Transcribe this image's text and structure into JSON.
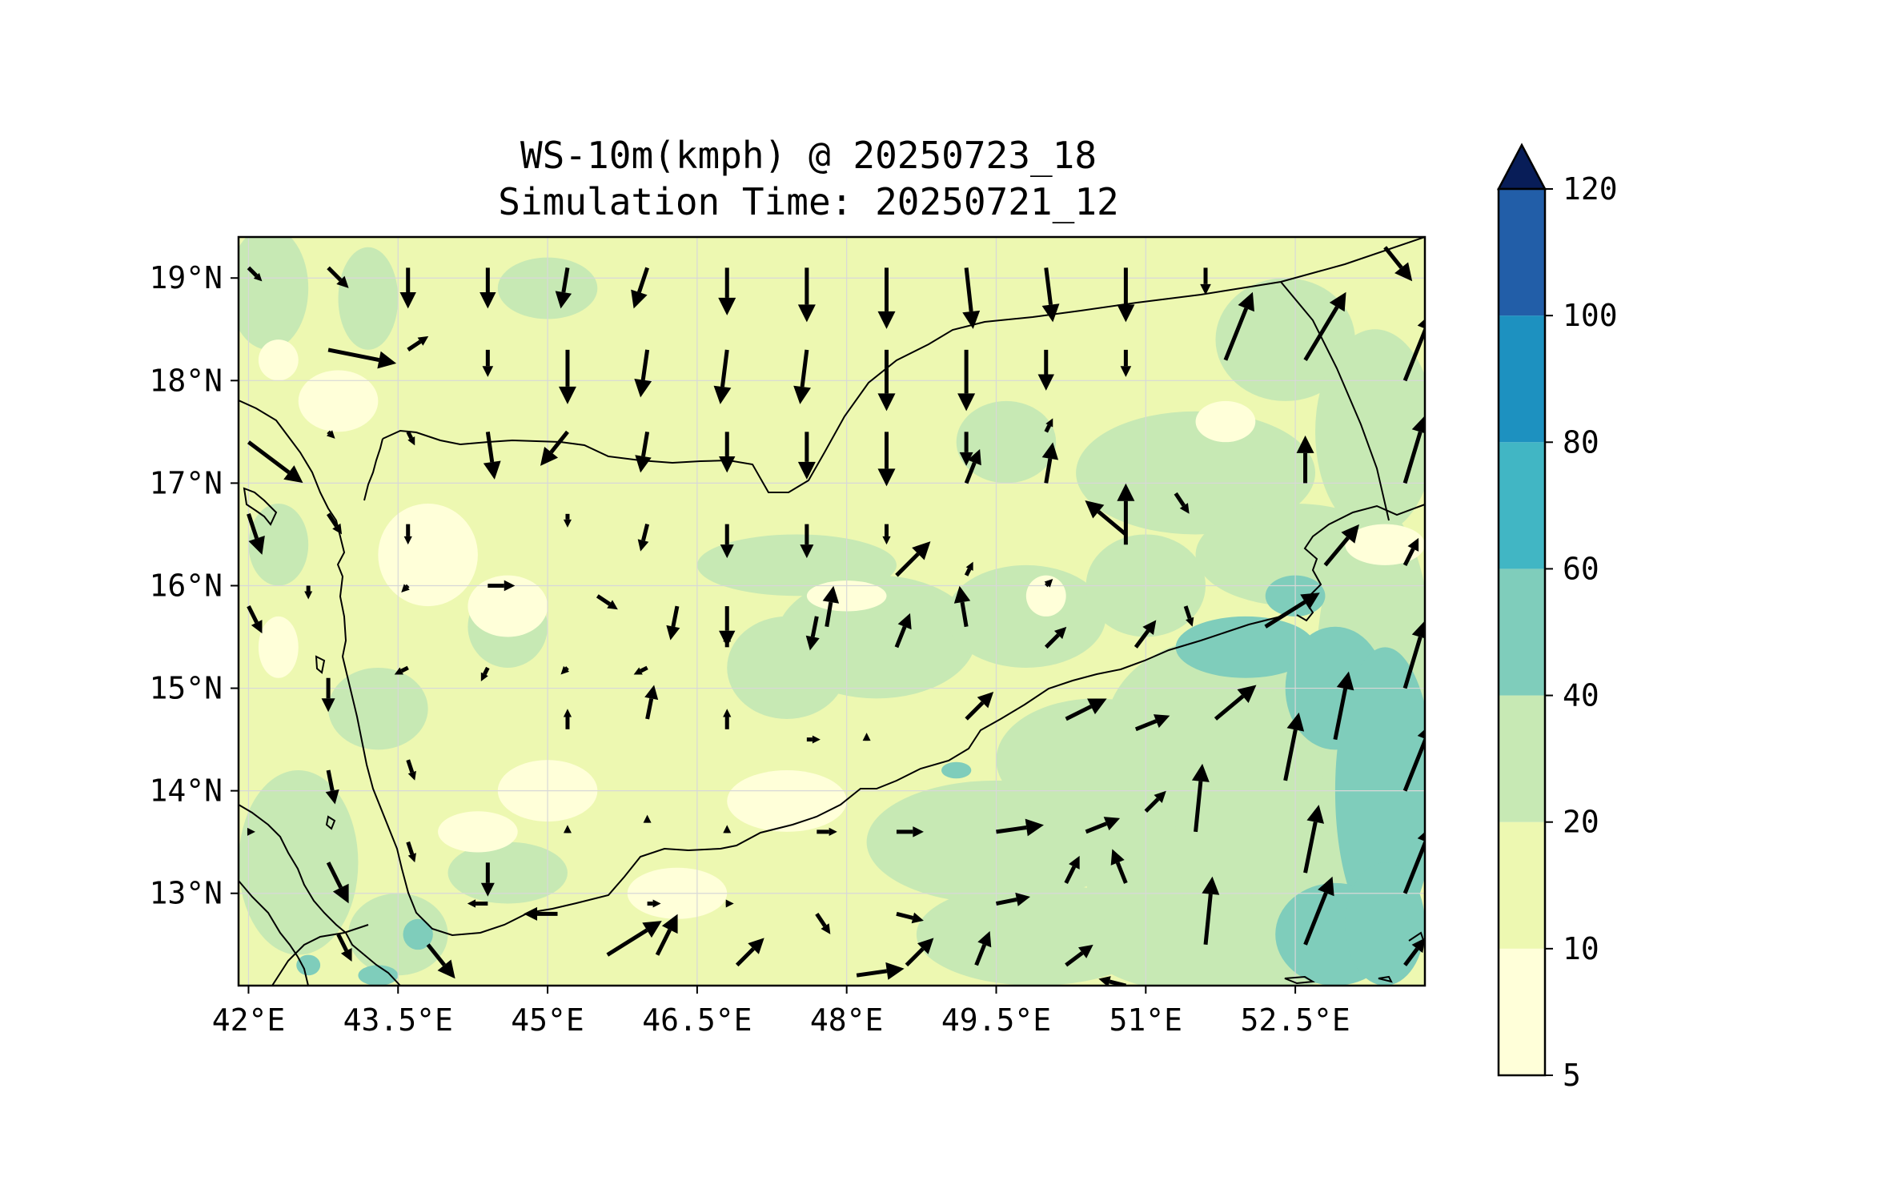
{
  "chart_data": {
    "type": "heatmap",
    "title_line1": "WS-10m(kmph) @ 20250723_18",
    "title_line2": "Simulation Time: 20250721_12",
    "x_ticks": [
      "42°E",
      "43.5°E",
      "45°E",
      "46.5°E",
      "48°E",
      "49.5°E",
      "51°E",
      "52.5°E"
    ],
    "x_tick_values": [
      42,
      43.5,
      45,
      46.5,
      48,
      49.5,
      51,
      52.5
    ],
    "y_ticks": [
      "13°N",
      "14°N",
      "15°N",
      "16°N",
      "17°N",
      "18°N",
      "19°N"
    ],
    "y_tick_values": [
      13,
      14,
      15,
      16,
      17,
      18,
      19
    ],
    "xlim": [
      41.9,
      53.8
    ],
    "ylim": [
      12.1,
      19.4
    ],
    "grid": true,
    "colorbar": {
      "levels": [
        5,
        10,
        20,
        40,
        60,
        80,
        100,
        120
      ],
      "level_labels": [
        "5",
        "10",
        "20",
        "40",
        "60",
        "80",
        "100",
        "120"
      ],
      "colors": [
        "#ffffd9",
        "#edf8b1",
        "#c7e9b4",
        "#7fcdbb",
        "#41b6c4",
        "#1d91c0",
        "#225ea8",
        "#0c2c84"
      ],
      "extend": "max",
      "extend_color": "#081d58"
    },
    "wind_vectors": [
      {
        "lon": 42.0,
        "lat": 19.1,
        "u": 0.2,
        "v": -0.2
      },
      {
        "lon": 42.8,
        "lat": 19.1,
        "u": 0.3,
        "v": -0.3
      },
      {
        "lon": 43.6,
        "lat": 19.1,
        "u": 0.0,
        "v": -0.6
      },
      {
        "lon": 44.4,
        "lat": 19.1,
        "u": 0.0,
        "v": -0.6
      },
      {
        "lon": 45.2,
        "lat": 19.1,
        "u": -0.1,
        "v": -0.6
      },
      {
        "lon": 46.0,
        "lat": 19.1,
        "u": -0.2,
        "v": -0.6
      },
      {
        "lon": 46.8,
        "lat": 19.1,
        "u": 0.0,
        "v": -0.7
      },
      {
        "lon": 47.6,
        "lat": 19.1,
        "u": 0.0,
        "v": -0.8
      },
      {
        "lon": 48.4,
        "lat": 19.1,
        "u": 0.0,
        "v": -0.9
      },
      {
        "lon": 49.2,
        "lat": 19.1,
        "u": 0.1,
        "v": -0.9
      },
      {
        "lon": 50.0,
        "lat": 19.1,
        "u": 0.1,
        "v": -0.8
      },
      {
        "lon": 50.8,
        "lat": 19.1,
        "u": 0.0,
        "v": -0.8
      },
      {
        "lon": 51.6,
        "lat": 19.1,
        "u": 0.0,
        "v": -0.4
      },
      {
        "lon": 53.4,
        "lat": 19.3,
        "u": 0.4,
        "v": -0.5
      },
      {
        "lon": 42.8,
        "lat": 18.3,
        "u": 1.0,
        "v": -0.2
      },
      {
        "lon": 43.6,
        "lat": 18.3,
        "u": 0.3,
        "v": 0.2
      },
      {
        "lon": 44.4,
        "lat": 18.3,
        "u": 0.0,
        "v": -0.4
      },
      {
        "lon": 45.2,
        "lat": 18.3,
        "u": 0.0,
        "v": -0.8
      },
      {
        "lon": 46.0,
        "lat": 18.3,
        "u": -0.1,
        "v": -0.7
      },
      {
        "lon": 46.8,
        "lat": 18.3,
        "u": -0.1,
        "v": -0.8
      },
      {
        "lon": 47.6,
        "lat": 18.3,
        "u": -0.1,
        "v": -0.8
      },
      {
        "lon": 48.4,
        "lat": 18.3,
        "u": 0.0,
        "v": -0.9
      },
      {
        "lon": 49.2,
        "lat": 18.3,
        "u": 0.0,
        "v": -0.9
      },
      {
        "lon": 50.0,
        "lat": 18.3,
        "u": 0.0,
        "v": -0.6
      },
      {
        "lon": 50.8,
        "lat": 18.3,
        "u": 0.0,
        "v": -0.4
      },
      {
        "lon": 51.8,
        "lat": 18.2,
        "u": 0.4,
        "v": 1.0
      },
      {
        "lon": 52.6,
        "lat": 18.2,
        "u": 0.6,
        "v": 1.0
      },
      {
        "lon": 53.6,
        "lat": 18.0,
        "u": 0.4,
        "v": 1.0
      },
      {
        "lon": 42.0,
        "lat": 17.4,
        "u": 0.8,
        "v": -0.6
      },
      {
        "lon": 42.8,
        "lat": 17.5,
        "u": 0.1,
        "v": -0.1
      },
      {
        "lon": 43.6,
        "lat": 17.5,
        "u": 0.1,
        "v": -0.2
      },
      {
        "lon": 44.4,
        "lat": 17.5,
        "u": 0.1,
        "v": -0.7
      },
      {
        "lon": 45.2,
        "lat": 17.5,
        "u": -0.4,
        "v": -0.5
      },
      {
        "lon": 46.0,
        "lat": 17.5,
        "u": -0.1,
        "v": -0.6
      },
      {
        "lon": 46.8,
        "lat": 17.5,
        "u": 0.0,
        "v": -0.6
      },
      {
        "lon": 47.6,
        "lat": 17.5,
        "u": 0.0,
        "v": -0.7
      },
      {
        "lon": 48.4,
        "lat": 17.5,
        "u": 0.0,
        "v": -0.8
      },
      {
        "lon": 49.2,
        "lat": 17.5,
        "u": 0.0,
        "v": -0.5
      },
      {
        "lon": 50.0,
        "lat": 17.5,
        "u": 0.1,
        "v": 0.2
      },
      {
        "lon": 52.6,
        "lat": 17.0,
        "u": 0.0,
        "v": 0.7
      },
      {
        "lon": 53.6,
        "lat": 17.0,
        "u": 0.3,
        "v": 1.0
      },
      {
        "lon": 42.0,
        "lat": 16.7,
        "u": 0.2,
        "v": -0.6
      },
      {
        "lon": 42.8,
        "lat": 16.7,
        "u": 0.2,
        "v": -0.3
      },
      {
        "lon": 43.6,
        "lat": 16.6,
        "u": 0.0,
        "v": -0.3
      },
      {
        "lon": 45.2,
        "lat": 16.7,
        "u": 0.0,
        "v": -0.2
      },
      {
        "lon": 46.0,
        "lat": 16.6,
        "u": -0.1,
        "v": -0.4
      },
      {
        "lon": 46.8,
        "lat": 16.6,
        "u": 0.0,
        "v": -0.5
      },
      {
        "lon": 47.6,
        "lat": 16.6,
        "u": 0.0,
        "v": -0.5
      },
      {
        "lon": 48.4,
        "lat": 16.6,
        "u": 0.0,
        "v": -0.3
      },
      {
        "lon": 49.2,
        "lat": 17.0,
        "u": 0.2,
        "v": 0.5
      },
      {
        "lon": 50.0,
        "lat": 17.0,
        "u": 0.1,
        "v": 0.6
      },
      {
        "lon": 50.8,
        "lat": 16.5,
        "u": -0.6,
        "v": 0.5
      },
      {
        "lon": 51.3,
        "lat": 16.9,
        "u": 0.2,
        "v": -0.3
      },
      {
        "lon": 50.8,
        "lat": 16.4,
        "u": 0.0,
        "v": 0.9
      },
      {
        "lon": 42.0,
        "lat": 15.8,
        "u": 0.2,
        "v": -0.4
      },
      {
        "lon": 42.6,
        "lat": 16.0,
        "u": 0.0,
        "v": -0.2
      },
      {
        "lon": 43.6,
        "lat": 16.0,
        "u": -0.1,
        "v": -0.1
      },
      {
        "lon": 44.4,
        "lat": 16.0,
        "u": 0.4,
        "v": 0.0
      },
      {
        "lon": 45.5,
        "lat": 15.9,
        "u": 0.3,
        "v": -0.2
      },
      {
        "lon": 46.3,
        "lat": 15.8,
        "u": -0.1,
        "v": -0.5
      },
      {
        "lon": 46.8,
        "lat": 15.8,
        "u": 0.0,
        "v": -0.6
      },
      {
        "lon": 47.7,
        "lat": 15.7,
        "u": -0.1,
        "v": -0.5
      },
      {
        "lon": 47.8,
        "lat": 15.6,
        "u": 0.1,
        "v": 0.6
      },
      {
        "lon": 48.5,
        "lat": 16.1,
        "u": 0.5,
        "v": 0.5
      },
      {
        "lon": 49.2,
        "lat": 15.6,
        "u": -0.1,
        "v": 0.6
      },
      {
        "lon": 49.2,
        "lat": 16.1,
        "u": 0.1,
        "v": 0.2
      },
      {
        "lon": 50.0,
        "lat": 16.0,
        "u": 0.1,
        "v": 0.1
      },
      {
        "lon": 51.4,
        "lat": 15.8,
        "u": 0.1,
        "v": -0.3
      },
      {
        "lon": 52.2,
        "lat": 15.6,
        "u": 0.8,
        "v": 0.5
      },
      {
        "lon": 52.8,
        "lat": 16.2,
        "u": 0.5,
        "v": 0.6
      },
      {
        "lon": 53.6,
        "lat": 16.2,
        "u": 0.2,
        "v": 0.4
      },
      {
        "lon": 42.8,
        "lat": 15.1,
        "u": 0.0,
        "v": -0.5
      },
      {
        "lon": 43.6,
        "lat": 15.2,
        "u": -0.2,
        "v": -0.1
      },
      {
        "lon": 44.4,
        "lat": 15.2,
        "u": -0.1,
        "v": -0.2
      },
      {
        "lon": 45.2,
        "lat": 15.2,
        "u": -0.1,
        "v": -0.1
      },
      {
        "lon": 46.0,
        "lat": 15.2,
        "u": -0.2,
        "v": -0.1
      },
      {
        "lon": 46.8,
        "lat": 15.4,
        "u": 0.0,
        "v": 0.2
      },
      {
        "lon": 48.5,
        "lat": 15.4,
        "u": 0.2,
        "v": 0.5
      },
      {
        "lon": 50.0,
        "lat": 15.4,
        "u": 0.3,
        "v": 0.3
      },
      {
        "lon": 50.9,
        "lat": 15.4,
        "u": 0.3,
        "v": 0.4
      },
      {
        "lon": 52.9,
        "lat": 14.5,
        "u": 0.2,
        "v": 1.0
      },
      {
        "lon": 53.6,
        "lat": 15.0,
        "u": 0.3,
        "v": 1.0
      },
      {
        "lon": 42.8,
        "lat": 14.2,
        "u": 0.1,
        "v": -0.5
      },
      {
        "lon": 43.6,
        "lat": 14.3,
        "u": 0.1,
        "v": -0.3
      },
      {
        "lon": 44.4,
        "lat": 14.5,
        "u": 0.0,
        "v": 0.0
      },
      {
        "lon": 45.2,
        "lat": 14.6,
        "u": 0.0,
        "v": 0.3
      },
      {
        "lon": 46.0,
        "lat": 14.7,
        "u": 0.1,
        "v": 0.5
      },
      {
        "lon": 46.8,
        "lat": 14.6,
        "u": 0.0,
        "v": 0.3
      },
      {
        "lon": 47.6,
        "lat": 14.5,
        "u": 0.2,
        "v": 0.0
      },
      {
        "lon": 48.2,
        "lat": 14.5,
        "u": 0.0,
        "v": 0.1
      },
      {
        "lon": 49.2,
        "lat": 14.7,
        "u": 0.4,
        "v": 0.4
      },
      {
        "lon": 50.2,
        "lat": 14.7,
        "u": 0.6,
        "v": 0.3
      },
      {
        "lon": 50.9,
        "lat": 14.6,
        "u": 0.5,
        "v": 0.2
      },
      {
        "lon": 51.7,
        "lat": 14.7,
        "u": 0.6,
        "v": 0.5
      },
      {
        "lon": 52.4,
        "lat": 14.1,
        "u": 0.2,
        "v": 1.0
      },
      {
        "lon": 53.6,
        "lat": 14.0,
        "u": 0.4,
        "v": 1.0
      },
      {
        "lon": 42.0,
        "lat": 13.6,
        "u": 0.1,
        "v": 0.0
      },
      {
        "lon": 42.8,
        "lat": 13.3,
        "u": 0.3,
        "v": -0.6
      },
      {
        "lon": 43.6,
        "lat": 13.5,
        "u": 0.1,
        "v": -0.3
      },
      {
        "lon": 44.4,
        "lat": 13.3,
        "u": 0.0,
        "v": -0.5
      },
      {
        "lon": 45.2,
        "lat": 13.6,
        "u": 0.0,
        "v": 0.1
      },
      {
        "lon": 46.0,
        "lat": 13.7,
        "u": 0.0,
        "v": 0.1
      },
      {
        "lon": 46.8,
        "lat": 13.6,
        "u": 0.0,
        "v": 0.1
      },
      {
        "lon": 47.7,
        "lat": 13.6,
        "u": 0.3,
        "v": 0.0
      },
      {
        "lon": 48.5,
        "lat": 13.6,
        "u": 0.4,
        "v": 0.0
      },
      {
        "lon": 49.5,
        "lat": 13.6,
        "u": 0.7,
        "v": 0.1
      },
      {
        "lon": 50.4,
        "lat": 13.6,
        "u": 0.5,
        "v": 0.2
      },
      {
        "lon": 51.0,
        "lat": 13.8,
        "u": 0.3,
        "v": 0.3
      },
      {
        "lon": 51.5,
        "lat": 13.6,
        "u": 0.1,
        "v": 1.0
      },
      {
        "lon": 52.6,
        "lat": 13.2,
        "u": 0.2,
        "v": 1.0
      },
      {
        "lon": 53.6,
        "lat": 13.0,
        "u": 0.4,
        "v": 1.0
      },
      {
        "lon": 42.9,
        "lat": 12.6,
        "u": 0.2,
        "v": -0.4
      },
      {
        "lon": 43.8,
        "lat": 12.5,
        "u": 0.4,
        "v": -0.5
      },
      {
        "lon": 44.4,
        "lat": 12.9,
        "u": -0.3,
        "v": 0.0
      },
      {
        "lon": 45.1,
        "lat": 12.8,
        "u": -0.5,
        "v": 0.0
      },
      {
        "lon": 46.0,
        "lat": 12.9,
        "u": 0.2,
        "v": 0.0
      },
      {
        "lon": 46.8,
        "lat": 12.9,
        "u": 0.1,
        "v": 0.0
      },
      {
        "lon": 47.7,
        "lat": 12.8,
        "u": 0.2,
        "v": -0.3
      },
      {
        "lon": 48.5,
        "lat": 12.8,
        "u": 0.4,
        "v": -0.1
      },
      {
        "lon": 49.5,
        "lat": 12.9,
        "u": 0.5,
        "v": 0.1
      },
      {
        "lon": 50.2,
        "lat": 13.1,
        "u": 0.2,
        "v": 0.4
      },
      {
        "lon": 50.8,
        "lat": 13.1,
        "u": -0.2,
        "v": 0.5
      },
      {
        "lon": 45.6,
        "lat": 12.4,
        "u": 0.8,
        "v": 0.5
      },
      {
        "lon": 46.1,
        "lat": 12.4,
        "u": 0.3,
        "v": 0.6
      },
      {
        "lon": 46.9,
        "lat": 12.3,
        "u": 0.4,
        "v": 0.4
      },
      {
        "lon": 48.1,
        "lat": 12.2,
        "u": 0.7,
        "v": 0.1
      },
      {
        "lon": 48.6,
        "lat": 12.3,
        "u": 0.4,
        "v": 0.4
      },
      {
        "lon": 49.3,
        "lat": 12.3,
        "u": 0.2,
        "v": 0.5
      },
      {
        "lon": 50.2,
        "lat": 12.3,
        "u": 0.4,
        "v": 0.3
      },
      {
        "lon": 50.8,
        "lat": 12.1,
        "u": -0.4,
        "v": 0.1
      },
      {
        "lon": 51.6,
        "lat": 12.5,
        "u": 0.1,
        "v": 1.0
      },
      {
        "lon": 52.6,
        "lat": 12.5,
        "u": 0.4,
        "v": 1.0
      },
      {
        "lon": 53.6,
        "lat": 12.3,
        "u": 0.3,
        "v": 0.4
      }
    ],
    "contour_blobs": [
      {
        "lon": 42.2,
        "lat": 18.9,
        "rx": 0.4,
        "ry": 0.6,
        "level": 2
      },
      {
        "lon": 43.2,
        "lat": 18.8,
        "rx": 0.3,
        "ry": 0.5,
        "level": 2
      },
      {
        "lon": 45.0,
        "lat": 18.9,
        "rx": 0.5,
        "ry": 0.3,
        "level": 2
      },
      {
        "lon": 49.6,
        "lat": 17.4,
        "rx": 0.5,
        "ry": 0.4,
        "level": 2
      },
      {
        "lon": 51.5,
        "lat": 17.1,
        "rx": 1.2,
        "ry": 0.6,
        "level": 2
      },
      {
        "lon": 52.4,
        "lat": 18.4,
        "rx": 0.7,
        "ry": 0.6,
        "level": 2
      },
      {
        "lon": 53.3,
        "lat": 17.5,
        "rx": 0.6,
        "ry": 1.0,
        "level": 2
      },
      {
        "lon": 52.5,
        "lat": 16.3,
        "rx": 1.0,
        "ry": 0.5,
        "level": 2
      },
      {
        "lon": 47.5,
        "lat": 16.2,
        "rx": 1.0,
        "ry": 0.3,
        "level": 2
      },
      {
        "lon": 48.3,
        "lat": 15.5,
        "rx": 1.0,
        "ry": 0.6,
        "level": 2
      },
      {
        "lon": 49.8,
        "lat": 15.7,
        "rx": 0.8,
        "ry": 0.5,
        "level": 2
      },
      {
        "lon": 51.0,
        "lat": 16.0,
        "rx": 0.6,
        "ry": 0.5,
        "level": 2
      },
      {
        "lon": 47.4,
        "lat": 15.2,
        "rx": 0.6,
        "ry": 0.5,
        "level": 2
      },
      {
        "lon": 42.3,
        "lat": 16.4,
        "rx": 0.3,
        "ry": 0.4,
        "level": 2
      },
      {
        "lon": 43.3,
        "lat": 14.8,
        "rx": 0.5,
        "ry": 0.4,
        "level": 2
      },
      {
        "lon": 44.6,
        "lat": 15.6,
        "rx": 0.4,
        "ry": 0.4,
        "level": 2
      },
      {
        "lon": 42.5,
        "lat": 13.3,
        "rx": 0.6,
        "ry": 0.9,
        "level": 2
      },
      {
        "lon": 43.5,
        "lat": 12.6,
        "rx": 0.5,
        "ry": 0.4,
        "level": 2
      },
      {
        "lon": 44.6,
        "lat": 13.2,
        "rx": 0.6,
        "ry": 0.3,
        "level": 2
      },
      {
        "lon": 49.5,
        "lat": 13.5,
        "rx": 1.3,
        "ry": 0.6,
        "level": 2
      },
      {
        "lon": 50.5,
        "lat": 14.3,
        "rx": 1.0,
        "ry": 0.6,
        "level": 2
      },
      {
        "lon": 51.8,
        "lat": 14.6,
        "rx": 1.2,
        "ry": 0.9,
        "level": 2
      },
      {
        "lon": 51.4,
        "lat": 13.2,
        "rx": 1.0,
        "ry": 1.0,
        "level": 2
      },
      {
        "lon": 52.5,
        "lat": 13.6,
        "rx": 1.2,
        "ry": 1.4,
        "level": 2
      },
      {
        "lon": 53.3,
        "lat": 15.0,
        "rx": 0.6,
        "ry": 1.8,
        "level": 2
      },
      {
        "lon": 49.9,
        "lat": 12.6,
        "rx": 1.2,
        "ry": 0.5,
        "level": 2
      },
      {
        "lon": 51.8,
        "lat": 12.5,
        "rx": 1.4,
        "ry": 0.5,
        "level": 2
      },
      {
        "lon": 52.0,
        "lat": 15.4,
        "rx": 0.7,
        "ry": 0.3,
        "level": 3
      },
      {
        "lon": 52.9,
        "lat": 15.0,
        "rx": 0.5,
        "ry": 0.6,
        "level": 3
      },
      {
        "lon": 53.4,
        "lat": 14.0,
        "rx": 0.5,
        "ry": 1.4,
        "level": 3
      },
      {
        "lon": 52.9,
        "lat": 12.6,
        "rx": 0.6,
        "ry": 0.5,
        "level": 3
      },
      {
        "lon": 53.4,
        "lat": 12.7,
        "rx": 0.4,
        "ry": 0.6,
        "level": 3
      },
      {
        "lon": 52.5,
        "lat": 15.9,
        "rx": 0.3,
        "ry": 0.2,
        "level": 3
      },
      {
        "lon": 43.7,
        "lat": 12.6,
        "rx": 0.15,
        "ry": 0.15,
        "level": 3
      },
      {
        "lon": 42.6,
        "lat": 12.3,
        "rx": 0.12,
        "ry": 0.1,
        "level": 3
      },
      {
        "lon": 43.3,
        "lat": 12.2,
        "rx": 0.2,
        "ry": 0.1,
        "level": 3
      },
      {
        "lon": 49.1,
        "lat": 14.2,
        "rx": 0.15,
        "ry": 0.08,
        "level": 3
      }
    ],
    "white_blobs": [
      {
        "lon": 42.9,
        "lat": 17.8,
        "rx": 0.4,
        "ry": 0.3
      },
      {
        "lon": 43.8,
        "lat": 16.3,
        "rx": 0.5,
        "ry": 0.5
      },
      {
        "lon": 44.6,
        "lat": 15.8,
        "rx": 0.4,
        "ry": 0.3
      },
      {
        "lon": 42.3,
        "lat": 15.4,
        "rx": 0.2,
        "ry": 0.3
      },
      {
        "lon": 45.0,
        "lat": 14.0,
        "rx": 0.5,
        "ry": 0.3
      },
      {
        "lon": 46.3,
        "lat": 13.0,
        "rx": 0.5,
        "ry": 0.25
      },
      {
        "lon": 47.4,
        "lat": 13.9,
        "rx": 0.6,
        "ry": 0.3
      },
      {
        "lon": 44.3,
        "lat": 13.6,
        "rx": 0.4,
        "ry": 0.2
      },
      {
        "lon": 48.0,
        "lat": 15.9,
        "rx": 0.4,
        "ry": 0.15
      },
      {
        "lon": 50.0,
        "lat": 15.9,
        "rx": 0.2,
        "ry": 0.2
      },
      {
        "lon": 51.8,
        "lat": 17.6,
        "rx": 0.3,
        "ry": 0.2
      },
      {
        "lon": 53.4,
        "lat": 16.4,
        "rx": 0.4,
        "ry": 0.2
      },
      {
        "lon": 42.3,
        "lat": 18.2,
        "rx": 0.2,
        "ry": 0.2
      }
    ]
  }
}
